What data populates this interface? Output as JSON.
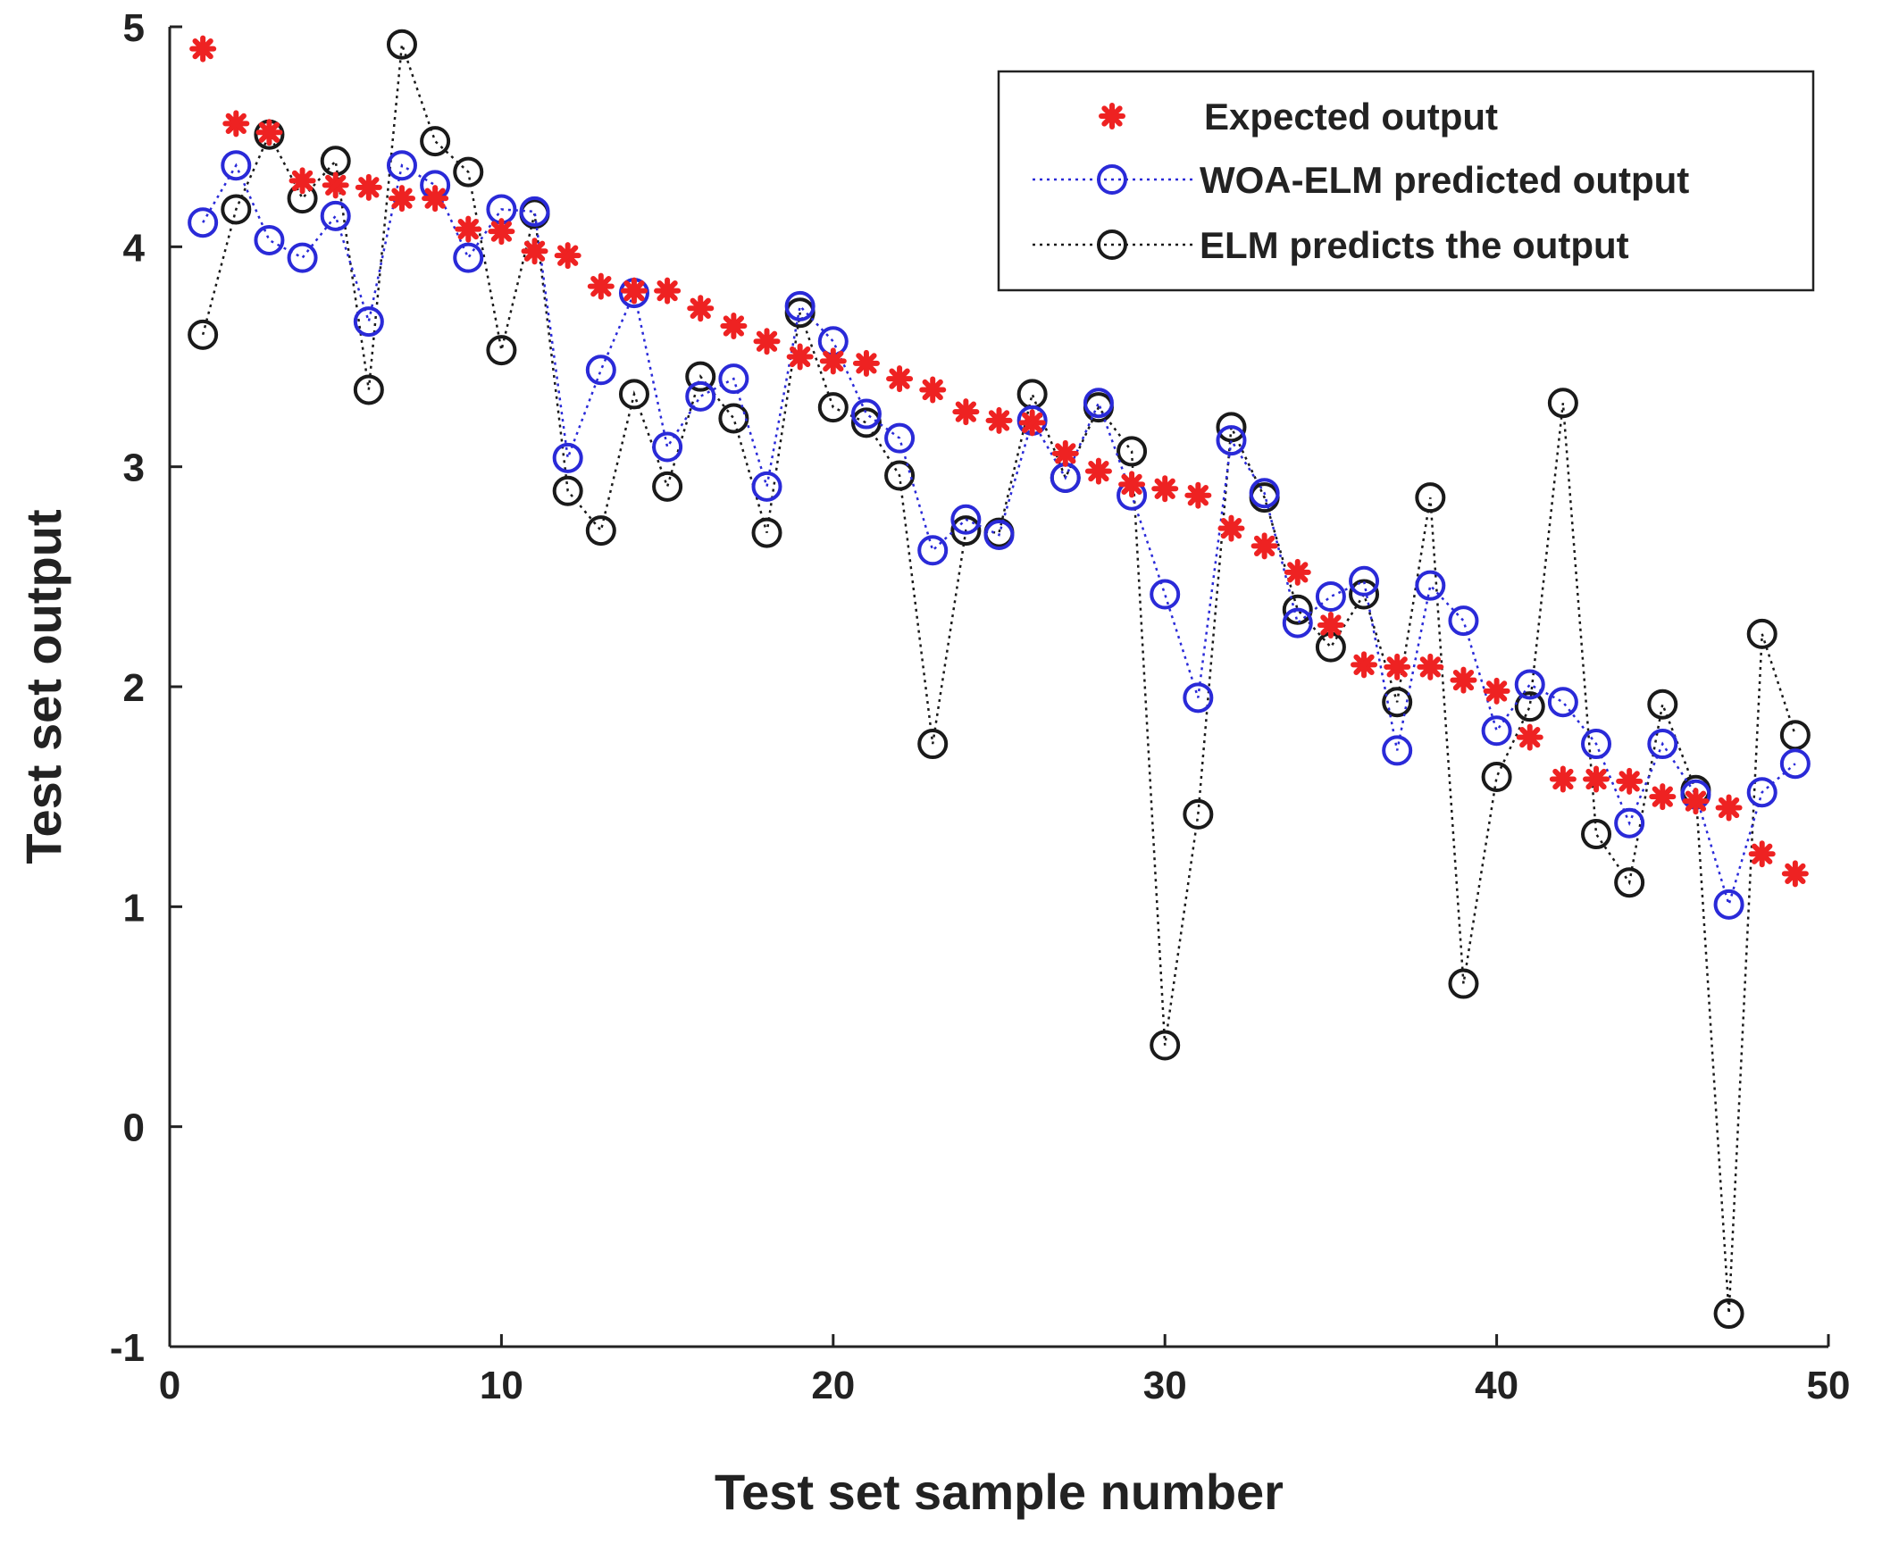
{
  "chart_data": {
    "type": "line",
    "title": "",
    "xlabel": "Test set sample number",
    "ylabel": "Test set output",
    "xlim": [
      0,
      50
    ],
    "ylim": [
      -1,
      5
    ],
    "xticks": [
      "0",
      "10",
      "20",
      "30",
      "40",
      "50"
    ],
    "yticks": [
      "-1",
      "0",
      "1",
      "2",
      "3",
      "4",
      "5"
    ],
    "grid": false,
    "legend_position": "top-right",
    "x": [
      1,
      2,
      3,
      4,
      5,
      6,
      7,
      8,
      9,
      10,
      11,
      12,
      13,
      14,
      15,
      16,
      17,
      18,
      19,
      20,
      21,
      22,
      23,
      24,
      25,
      26,
      27,
      28,
      29,
      30,
      31,
      32,
      33,
      34,
      35,
      36,
      37,
      38,
      39,
      40,
      41,
      42,
      43,
      44,
      45,
      46,
      47,
      48,
      49
    ],
    "series": [
      {
        "name": "Expected output",
        "marker": "asterisk",
        "line": "none",
        "color": "#ee2222",
        "values": [
          4.9,
          4.56,
          4.52,
          4.3,
          4.28,
          4.27,
          4.22,
          4.22,
          4.08,
          4.07,
          3.98,
          3.96,
          3.82,
          3.8,
          3.8,
          3.72,
          3.64,
          3.57,
          3.5,
          3.48,
          3.47,
          3.4,
          3.35,
          3.25,
          3.21,
          3.2,
          3.06,
          2.98,
          2.92,
          2.9,
          2.87,
          2.72,
          2.64,
          2.52,
          2.28,
          2.1,
          2.09,
          2.09,
          2.03,
          1.98,
          1.77,
          1.58,
          1.58,
          1.57,
          1.5,
          1.48,
          1.45,
          1.24,
          1.15
        ]
      },
      {
        "name": "WOA-ELM predicted output",
        "marker": "circle",
        "line": "dotted",
        "color": "#2a2ad8",
        "values": [
          4.11,
          4.37,
          4.03,
          3.95,
          4.14,
          3.66,
          4.37,
          4.28,
          3.95,
          4.17,
          4.16,
          3.04,
          3.44,
          3.79,
          3.09,
          3.32,
          3.4,
          2.91,
          3.73,
          3.57,
          3.24,
          3.13,
          2.62,
          2.76,
          2.69,
          3.21,
          2.95,
          3.29,
          2.87,
          2.42,
          1.95,
          3.12,
          2.88,
          2.29,
          2.41,
          2.48,
          1.71,
          2.46,
          2.3,
          1.8,
          2.01,
          1.93,
          1.74,
          1.38,
          1.74,
          1.51,
          1.01,
          1.52,
          1.65
        ]
      },
      {
        "name": "ELM predicts the output",
        "marker": "circle",
        "line": "dotted",
        "color": "#1a1a1a",
        "values": [
          3.6,
          4.17,
          4.51,
          4.22,
          4.39,
          3.35,
          4.92,
          4.48,
          4.34,
          3.53,
          4.15,
          2.89,
          2.71,
          3.33,
          2.91,
          3.41,
          3.22,
          2.7,
          3.7,
          3.27,
          3.2,
          2.96,
          1.74,
          2.71,
          2.7,
          3.33,
          2.95,
          3.27,
          3.07,
          0.37,
          1.42,
          3.18,
          2.86,
          2.35,
          2.18,
          2.42,
          1.93,
          2.86,
          0.65,
          1.59,
          1.91,
          3.29,
          1.33,
          1.11,
          1.92,
          1.53,
          -0.85,
          2.24,
          1.78
        ]
      }
    ]
  }
}
